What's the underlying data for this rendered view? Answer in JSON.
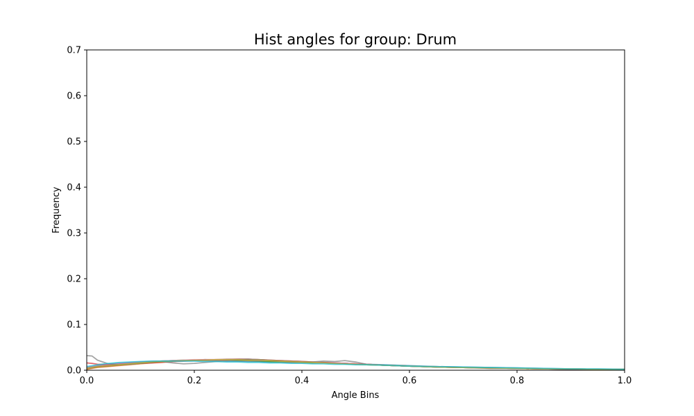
{
  "chart_data": {
    "type": "line",
    "title": "Hist angles for group: Drum",
    "xlabel": "Angle Bins",
    "ylabel": "Frequency",
    "xlim": [
      0,
      1.0
    ],
    "ylim": [
      0,
      0.7
    ],
    "xticks": [
      "0.0",
      "0.2",
      "0.4",
      "0.6",
      "0.8",
      "1.0"
    ],
    "yticks": [
      "0.0",
      "0.1",
      "0.2",
      "0.3",
      "0.4",
      "0.5",
      "0.6",
      "0.7"
    ],
    "grid": false,
    "legend": false,
    "x": [
      0.0,
      0.01,
      0.02,
      0.04,
      0.06,
      0.08,
      0.1,
      0.12,
      0.14,
      0.16,
      0.18,
      0.2,
      0.22,
      0.24,
      0.26,
      0.28,
      0.3,
      0.32,
      0.34,
      0.36,
      0.38,
      0.4,
      0.42,
      0.44,
      0.46,
      0.48,
      0.5,
      0.52,
      0.55,
      0.6,
      0.65,
      0.7,
      0.75,
      0.8,
      0.85,
      0.9,
      0.95,
      1.0
    ],
    "series": [
      {
        "color": "#1f77b4",
        "values": [
          0.006,
          0.008,
          0.01,
          0.013,
          0.015,
          0.017,
          0.018,
          0.019,
          0.02,
          0.021,
          0.021,
          0.021,
          0.021,
          0.021,
          0.02,
          0.02,
          0.019,
          0.019,
          0.018,
          0.018,
          0.017,
          0.017,
          0.016,
          0.016,
          0.015,
          0.015,
          0.014,
          0.013,
          0.012,
          0.01,
          0.008,
          0.007,
          0.006,
          0.005,
          0.004,
          0.003,
          0.002,
          0.002
        ]
      },
      {
        "color": "#ff7f0e",
        "values": [
          0.002,
          0.004,
          0.006,
          0.008,
          0.01,
          0.012,
          0.014,
          0.016,
          0.018,
          0.02,
          0.021,
          0.022,
          0.022,
          0.022,
          0.022,
          0.022,
          0.021,
          0.021,
          0.02,
          0.019,
          0.018,
          0.017,
          0.017,
          0.016,
          0.015,
          0.015,
          0.014,
          0.013,
          0.011,
          0.009,
          0.007,
          0.006,
          0.005,
          0.004,
          0.003,
          0.003,
          0.002,
          0.002
        ]
      },
      {
        "color": "#2ca02c",
        "values": [
          0.005,
          0.007,
          0.009,
          0.011,
          0.013,
          0.015,
          0.017,
          0.019,
          0.02,
          0.021,
          0.022,
          0.022,
          0.023,
          0.022,
          0.022,
          0.021,
          0.021,
          0.02,
          0.019,
          0.018,
          0.018,
          0.017,
          0.016,
          0.016,
          0.015,
          0.014,
          0.013,
          0.012,
          0.011,
          0.009,
          0.008,
          0.006,
          0.005,
          0.004,
          0.003,
          0.003,
          0.002,
          0.002
        ]
      },
      {
        "color": "#d62728",
        "values": [
          0.016,
          0.015,
          0.013,
          0.012,
          0.013,
          0.014,
          0.015,
          0.016,
          0.017,
          0.019,
          0.02,
          0.021,
          0.022,
          0.023,
          0.023,
          0.024,
          0.024,
          0.023,
          0.022,
          0.021,
          0.02,
          0.019,
          0.018,
          0.017,
          0.016,
          0.015,
          0.014,
          0.013,
          0.011,
          0.009,
          0.007,
          0.006,
          0.005,
          0.004,
          0.003,
          0.002,
          0.002,
          0.002
        ]
      },
      {
        "color": "#9467bd",
        "values": [
          0.004,
          0.006,
          0.008,
          0.01,
          0.012,
          0.014,
          0.016,
          0.018,
          0.019,
          0.02,
          0.021,
          0.022,
          0.022,
          0.022,
          0.022,
          0.022,
          0.022,
          0.021,
          0.021,
          0.02,
          0.019,
          0.018,
          0.017,
          0.016,
          0.015,
          0.014,
          0.013,
          0.012,
          0.011,
          0.009,
          0.007,
          0.006,
          0.005,
          0.004,
          0.003,
          0.003,
          0.002,
          0.002
        ]
      },
      {
        "color": "#8c564b",
        "values": [
          0.003,
          0.005,
          0.007,
          0.009,
          0.011,
          0.013,
          0.015,
          0.017,
          0.019,
          0.02,
          0.021,
          0.022,
          0.023,
          0.023,
          0.024,
          0.024,
          0.024,
          0.023,
          0.022,
          0.021,
          0.02,
          0.019,
          0.018,
          0.017,
          0.016,
          0.015,
          0.014,
          0.013,
          0.011,
          0.009,
          0.007,
          0.006,
          0.004,
          0.004,
          0.003,
          0.002,
          0.002,
          0.001
        ]
      },
      {
        "color": "#e377c2",
        "values": [
          0.006,
          0.008,
          0.01,
          0.012,
          0.014,
          0.016,
          0.018,
          0.019,
          0.02,
          0.021,
          0.022,
          0.023,
          0.023,
          0.023,
          0.023,
          0.023,
          0.022,
          0.022,
          0.021,
          0.02,
          0.019,
          0.018,
          0.017,
          0.016,
          0.016,
          0.015,
          0.014,
          0.013,
          0.011,
          0.009,
          0.008,
          0.006,
          0.005,
          0.004,
          0.003,
          0.003,
          0.002,
          0.002
        ]
      },
      {
        "color": "#7f7f7f",
        "values": [
          0.032,
          0.031,
          0.022,
          0.014,
          0.012,
          0.013,
          0.015,
          0.017,
          0.019,
          0.016,
          0.014,
          0.015,
          0.017,
          0.019,
          0.021,
          0.023,
          0.024,
          0.023,
          0.021,
          0.019,
          0.018,
          0.017,
          0.018,
          0.02,
          0.019,
          0.021,
          0.018,
          0.013,
          0.011,
          0.009,
          0.007,
          0.006,
          0.005,
          0.004,
          0.003,
          0.002,
          0.002,
          0.002
        ]
      },
      {
        "color": "#bcbd22",
        "values": [
          0.004,
          0.006,
          0.008,
          0.01,
          0.012,
          0.014,
          0.016,
          0.018,
          0.019,
          0.02,
          0.021,
          0.022,
          0.022,
          0.023,
          0.023,
          0.023,
          0.022,
          0.022,
          0.021,
          0.02,
          0.019,
          0.018,
          0.017,
          0.016,
          0.015,
          0.014,
          0.013,
          0.012,
          0.011,
          0.009,
          0.007,
          0.006,
          0.005,
          0.004,
          0.003,
          0.003,
          0.002,
          0.002
        ]
      },
      {
        "color": "#17becf",
        "values": [
          0.008,
          0.01,
          0.012,
          0.015,
          0.017,
          0.018,
          0.019,
          0.02,
          0.02,
          0.02,
          0.02,
          0.02,
          0.019,
          0.019,
          0.018,
          0.018,
          0.017,
          0.017,
          0.016,
          0.016,
          0.015,
          0.015,
          0.014,
          0.014,
          0.013,
          0.013,
          0.012,
          0.012,
          0.011,
          0.009,
          0.008,
          0.007,
          0.006,
          0.005,
          0.004,
          0.003,
          0.003,
          0.002
        ]
      }
    ]
  }
}
